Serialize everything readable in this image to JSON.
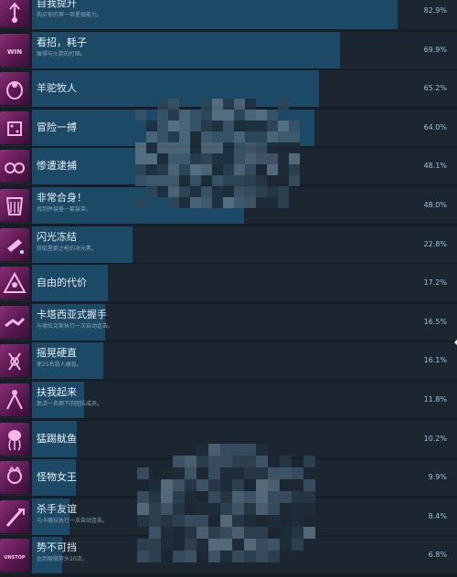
{
  "achievements": [
    {
      "title": "自我提升",
      "desc": "购买你的第一项星舰能力。",
      "percent": "82.9%",
      "value": 82.9,
      "icon": "rising-fist-icon"
    },
    {
      "title": "看招，耗子",
      "desc": "展得与火箭的打嗝。",
      "percent": "69.9%",
      "value": 69.9,
      "icon": "winner-badge-icon"
    },
    {
      "title": "羊驼牧人",
      "desc": "",
      "percent": "65.2%",
      "value": 65.2,
      "icon": "llama-icon"
    },
    {
      "title": "冒险一搏",
      "desc": "",
      "percent": "64.0%",
      "value": 64.0,
      "icon": "dice-icon"
    },
    {
      "title": "惨遭逮捕",
      "desc": "",
      "percent": "48.1%",
      "value": 48.1,
      "icon": "handcuffs-icon"
    },
    {
      "title": "非常合身！",
      "desc": "找到并装备一套装束。",
      "percent": "48.0%",
      "value": 48.0,
      "icon": "costume-icon"
    },
    {
      "title": "闪光冻结",
      "desc": "获取星爵之枪的冰元素。",
      "percent": "22.8%",
      "value": 22.8,
      "icon": "ice-blaster-icon"
    },
    {
      "title": "自由的代价",
      "desc": "",
      "percent": "17.2%",
      "value": 17.2,
      "icon": "pyramid-icon"
    },
    {
      "title": "卡塔西亚式握手",
      "desc": "与德拉克斯执行一次自动连击。",
      "percent": "16.5%",
      "value": 16.5,
      "icon": "handshake-icon"
    },
    {
      "title": "摇晃硬直",
      "desc": "使25名敌人硬直。",
      "percent": "16.1%",
      "value": 16.1,
      "icon": "stagger-icon"
    },
    {
      "title": "扶我起来",
      "desc": "复活一名倒下的团队成员。",
      "percent": "11.8%",
      "value": 11.8,
      "icon": "helping-hand-icon"
    },
    {
      "title": "猛踢鱿鱼",
      "desc": "",
      "percent": "10.2%",
      "value": 10.2,
      "icon": "squid-icon"
    },
    {
      "title": "怪物女王",
      "desc": "",
      "percent": "9.9%",
      "value": 9.9,
      "icon": "monster-queen-icon"
    },
    {
      "title": "杀手友谊",
      "desc": "与卡魔拉执行一次自动连击。",
      "percent": "8.4%",
      "value": 8.4,
      "icon": "blade-icon"
    },
    {
      "title": "势不可挡",
      "desc": "达到极限势头10次。",
      "percent": "6.8%",
      "value": 6.8,
      "icon": "unstoppable-logo-icon"
    }
  ],
  "colors": {
    "background": "#171d25",
    "bar": "#1c4a66",
    "track": "#1b2631",
    "icon": "#8a2f78",
    "percent_text": "#9bc1da"
  }
}
